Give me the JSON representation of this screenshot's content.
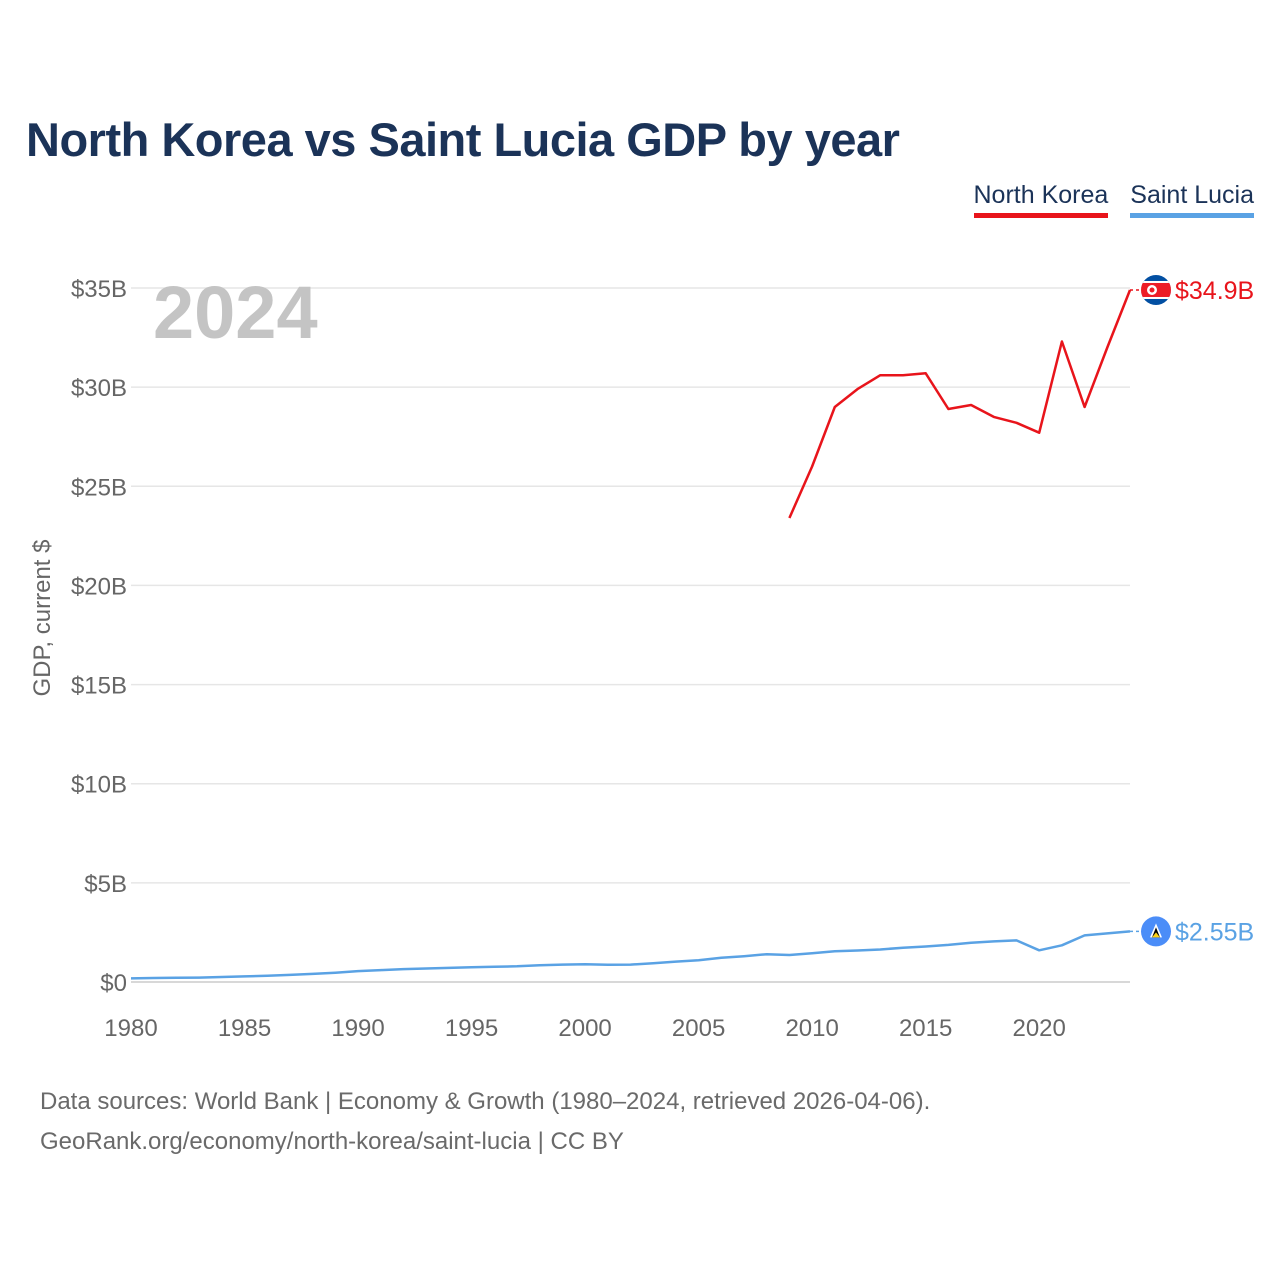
{
  "title": "North Korea vs Saint Lucia GDP by year",
  "legend": [
    {
      "label": "North Korea",
      "color": "#e8141b"
    },
    {
      "label": "Saint Lucia",
      "color": "#5aa2e4"
    }
  ],
  "year_overlay": "2024",
  "footer": {
    "line1": "Data sources: World Bank | Economy & Growth (1980–2024, retrieved 2026-04-06).",
    "line2": "GeoRank.org/economy/north-korea/saint-lucia | CC BY"
  },
  "chart_data": {
    "type": "line",
    "title": "North Korea vs Saint Lucia GDP by year",
    "xlabel": "",
    "ylabel": "GDP, current $",
    "xlim": [
      1980,
      2024
    ],
    "ylim": [
      0,
      35
    ],
    "y_unit": "billion USD",
    "x_ticks": [
      1980,
      1985,
      1990,
      1995,
      2000,
      2005,
      2010,
      2015,
      2020
    ],
    "x_tick_labels": [
      "1980",
      "1985",
      "1990",
      "1995",
      "2000",
      "2005",
      "2010",
      "2015",
      "2020"
    ],
    "y_ticks": [
      0,
      5,
      10,
      15,
      20,
      25,
      30,
      35
    ],
    "y_tick_labels": [
      "$0",
      "$5B",
      "$10B",
      "$15B",
      "$20B",
      "$25B",
      "$30B",
      "$35B"
    ],
    "grid": true,
    "legend_position": "top-right",
    "series": [
      {
        "name": "North Korea",
        "color": "#e8141b",
        "end_label": "$34.9B",
        "flag": "north-korea-flag",
        "x": [
          2009,
          2010,
          2011,
          2012,
          2013,
          2014,
          2015,
          2016,
          2017,
          2018,
          2019,
          2020,
          2021,
          2022,
          2023,
          2024
        ],
        "values": [
          23.4,
          26.0,
          29.0,
          29.9,
          30.6,
          30.6,
          30.7,
          28.9,
          29.1,
          28.5,
          28.2,
          27.7,
          32.3,
          29.0,
          32.0,
          34.9
        ]
      },
      {
        "name": "Saint Lucia",
        "color": "#5aa2e4",
        "end_label": "$2.55B",
        "flag": "saint-lucia-flag",
        "x": [
          1980,
          1981,
          1982,
          1983,
          1984,
          1985,
          1986,
          1987,
          1988,
          1989,
          1990,
          1991,
          1992,
          1993,
          1994,
          1995,
          1996,
          1997,
          1998,
          1999,
          2000,
          2001,
          2002,
          2003,
          2004,
          2005,
          2006,
          2007,
          2008,
          2009,
          2010,
          2011,
          2012,
          2013,
          2014,
          2015,
          2016,
          2017,
          2018,
          2019,
          2020,
          2021,
          2022,
          2023,
          2024
        ],
        "values": [
          0.18,
          0.2,
          0.21,
          0.22,
          0.25,
          0.28,
          0.32,
          0.36,
          0.41,
          0.47,
          0.55,
          0.6,
          0.65,
          0.68,
          0.71,
          0.74,
          0.77,
          0.79,
          0.84,
          0.88,
          0.9,
          0.87,
          0.88,
          0.95,
          1.03,
          1.1,
          1.22,
          1.3,
          1.4,
          1.36,
          1.45,
          1.55,
          1.59,
          1.64,
          1.73,
          1.79,
          1.87,
          1.98,
          2.05,
          2.1,
          1.6,
          1.85,
          2.35,
          2.45,
          2.55
        ]
      }
    ]
  }
}
